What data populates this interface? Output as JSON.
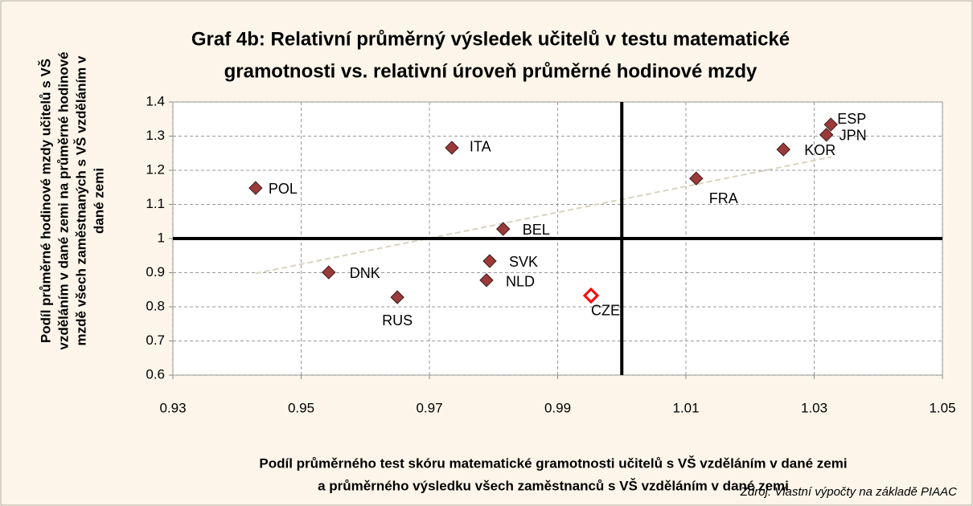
{
  "chart_data": {
    "type": "scatter",
    "title": [
      "Graf 4b: Relativní průměrný výsledek učitelů v testu matematické",
      "gramotnosti vs. relativní úroveň průměrné hodinové mzdy"
    ],
    "y_label": [
      "Podíl průměrné hodinové mzdy učitelů s VŠ",
      "vzděláním  v dané zemi na průměrné hodinové",
      "mzdě všech zaměstnaných s VŠ vzděláním v",
      "dané zemi"
    ],
    "x_label": [
      "Podíl průměrného test skóru matematické gramotnosti učitelů s VŠ vzděláním v dané zemi",
      "a průměrného výsledku všech zaměstnanců s VŠ vzděláním v dané zemi"
    ],
    "source": "Zdroj: Vlastní výpočty na základě PIAAC",
    "labels": [
      "POL",
      "ITA",
      "BEL",
      "SVK",
      "NLD",
      "DNK",
      "RUS",
      "CZE",
      "FRA",
      "KOR",
      "ESP",
      "JPN"
    ],
    "x": [
      0.9429,
      0.9735,
      0.9815,
      0.9794,
      0.9789,
      0.9543,
      0.965,
      0.9952,
      1.0116,
      1.0252,
      1.0326,
      1.0319
    ],
    "values": [
      1.148,
      1.266,
      1.028,
      0.934,
      0.878,
      0.901,
      0.828,
      0.833,
      1.176,
      1.261,
      1.334,
      1.304
    ],
    "marker_colors": [
      "#9b3a3a",
      "#9b3a3a",
      "#9b3a3a",
      "#9b3a3a",
      "#9b3a3a",
      "#9b3a3a",
      "#9b3a3a",
      "#ffffff",
      "#9b3a3a",
      "#9b3a3a",
      "#9b3a3a",
      "#9b3a3a"
    ],
    "marker_edge_colors": [
      "#3a1a1a",
      "#3a1a1a",
      "#3a1a1a",
      "#3a1a1a",
      "#3a1a1a",
      "#3a1a1a",
      "#3a1a1a",
      "#ff0000",
      "#3a1a1a",
      "#3a1a1a",
      "#3a1a1a",
      "#3a1a1a"
    ],
    "xlim": [
      0.93,
      1.05
    ],
    "ylim": [
      0.6,
      1.4
    ],
    "xticks": [
      0.93,
      0.95,
      0.97,
      0.99,
      1.01,
      1.03,
      1.05
    ],
    "yticks": [
      0.6,
      0.7,
      0.8,
      0.9,
      1,
      1.1,
      1.2,
      1.3,
      1.4
    ],
    "vlines": [
      1
    ],
    "hlines": [
      1
    ],
    "grid": true,
    "trendline": true,
    "trend_color": "#d8d4c0"
  }
}
